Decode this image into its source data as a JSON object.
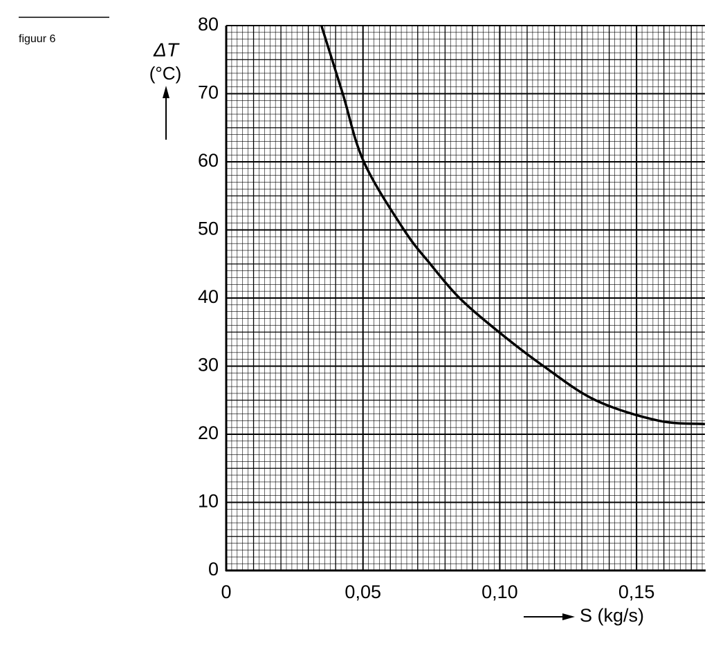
{
  "chart_data": {
    "type": "line",
    "caption": "figuur 6",
    "ylabel": "ΔT",
    "yunit": "(°C)",
    "xlabel": "S (kg/s)",
    "x": [
      0.0348,
      0.0426,
      0.0503,
      0.065,
      0.0746,
      0.0853,
      0.0997,
      0.116,
      0.135,
      0.158,
      0.175
    ],
    "series": [
      {
        "color": "#000000",
        "values": [
          80,
          70,
          60,
          50,
          45,
          40,
          35,
          30,
          25,
          22,
          21.5
        ]
      }
    ],
    "xlim": [
      0,
      0.175
    ],
    "xticks": [
      0,
      {
        "value": 0.05,
        "label": "0,05"
      },
      {
        "value": 0.1,
        "label": "0,10"
      },
      {
        "value": 0.15,
        "label": "0,15"
      }
    ],
    "ylim": [
      0,
      80
    ],
    "yticks": [
      0,
      10,
      20,
      30,
      40,
      50,
      60,
      70,
      80
    ],
    "grid": true
  }
}
